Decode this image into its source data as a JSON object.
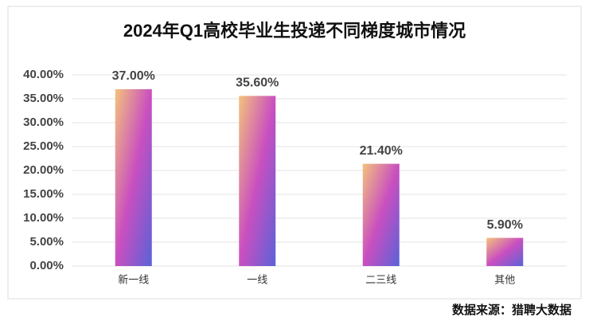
{
  "chart_data": {
    "type": "bar",
    "title": "2024年Q1高校毕业生投递不同梯度城市情况",
    "source": "数据来源：猎聘大数据",
    "categories": [
      "新一线",
      "一线",
      "二三线",
      "其他"
    ],
    "values": [
      37,
      35.6,
      21.4,
      5.9
    ],
    "value_labels": [
      "37.00%",
      "35.60%",
      "21.40%",
      "5.90%"
    ],
    "color": [
      "#f3c27c",
      "#c94fc0",
      "#5a62d8"
    ],
    "ylim": [
      0,
      40
    ],
    "yticks": [
      {
        "value": 0,
        "label": "0.00%"
      },
      {
        "value": 5,
        "label": "5.00%"
      },
      {
        "value": 10,
        "label": "10.00%"
      },
      {
        "value": 15,
        "label": "15.00%"
      },
      {
        "value": 20,
        "label": "20.00%"
      },
      {
        "value": 25,
        "label": "25.00%"
      },
      {
        "value": 30,
        "label": "30.00%"
      },
      {
        "value": 35,
        "label": "35.00%"
      },
      {
        "value": 40,
        "label": "40.00%"
      }
    ],
    "grid": true
  }
}
